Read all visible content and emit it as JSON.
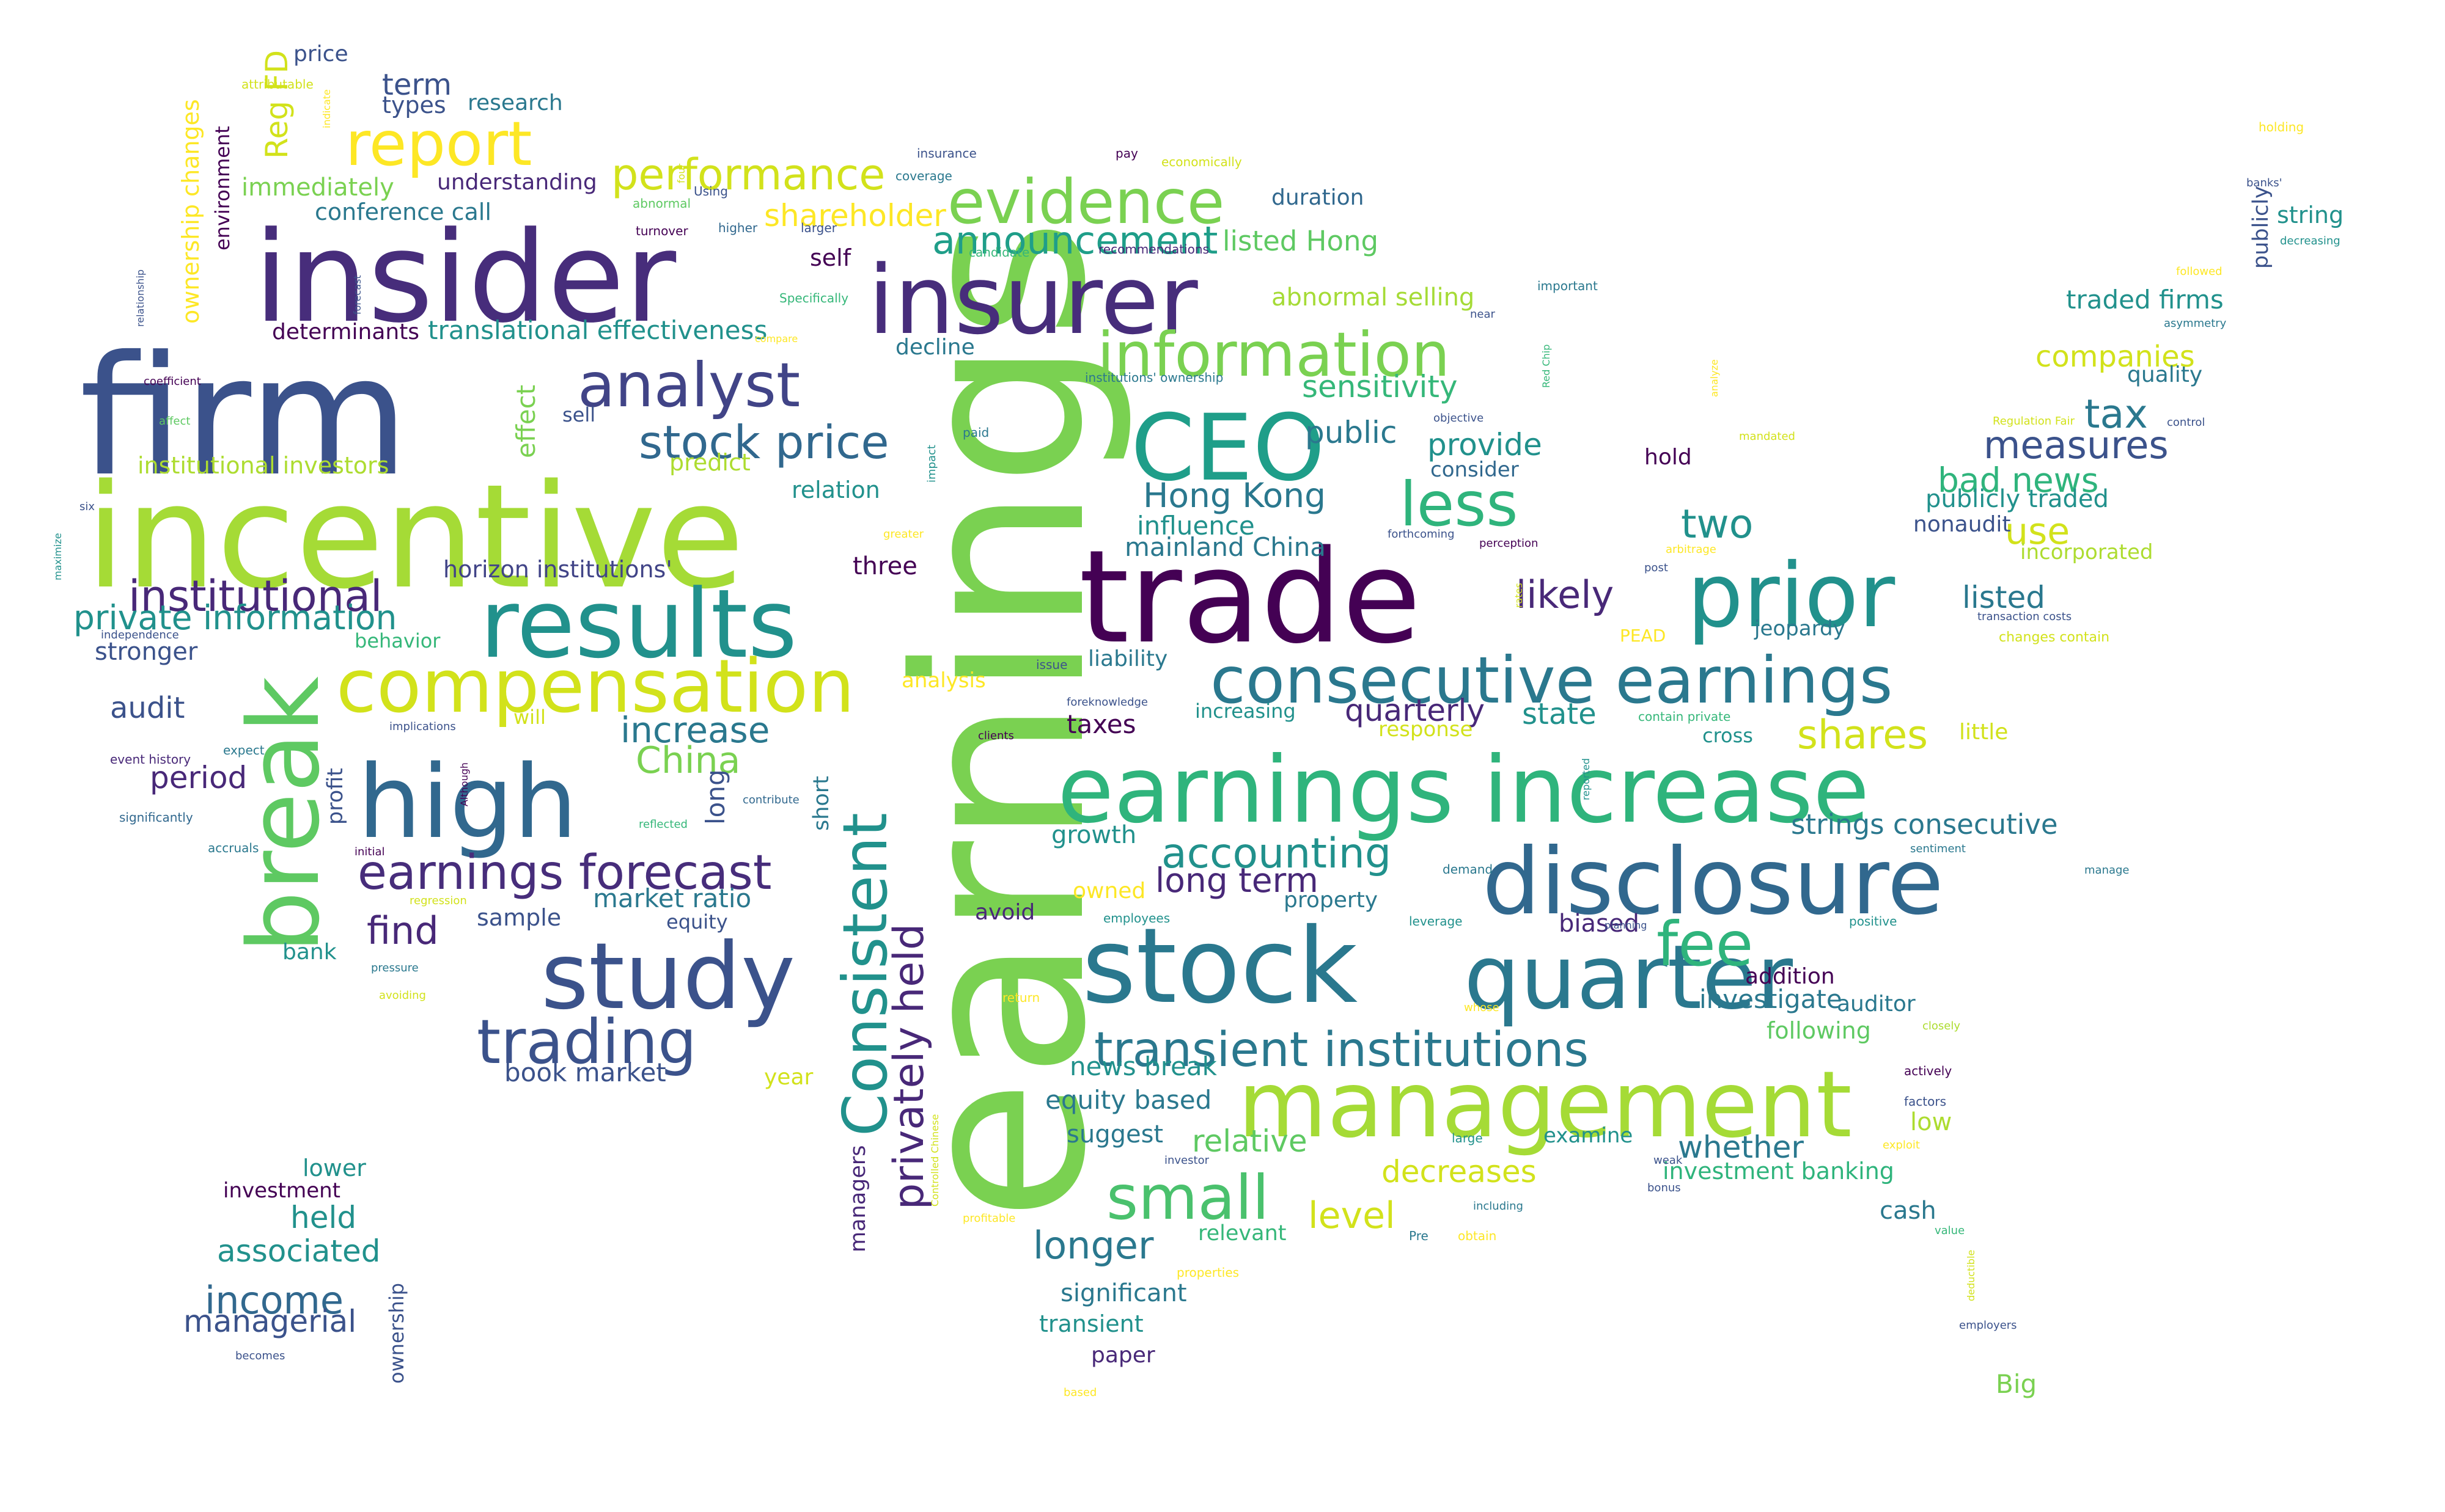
{
  "words": [
    {
      "text": "earnings",
      "color": "#7ad151"
    },
    {
      "text": "firm",
      "color": "#3b528b"
    },
    {
      "text": "insider",
      "color": "#472d7b"
    },
    {
      "text": "incentive",
      "color": "#a5db36"
    },
    {
      "text": "insurer",
      "color": "#472d7b"
    },
    {
      "text": "trade",
      "color": "#440154"
    },
    {
      "text": "earnings increase",
      "color": "#2fb47c"
    },
    {
      "text": "results",
      "color": "#21918c"
    },
    {
      "text": "stock",
      "color": "#2a788e"
    },
    {
      "text": "disclosure",
      "color": "#31688e"
    },
    {
      "text": "management",
      "color": "#a5db36"
    },
    {
      "text": "prior",
      "color": "#21918c"
    },
    {
      "text": "high",
      "color": "#31688e"
    },
    {
      "text": "compensation",
      "color": "#d2e21b"
    },
    {
      "text": "study",
      "color": "#3b528b"
    },
    {
      "text": "CEO",
      "color": "#1f9e89"
    },
    {
      "text": "quarter",
      "color": "#2a788e"
    },
    {
      "text": "consecutive earnings",
      "color": "#2a788e"
    },
    {
      "text": "break",
      "color": "#5ec962"
    },
    {
      "text": "Consistent",
      "color": "#21918c"
    },
    {
      "text": "evidence",
      "color": "#7ad151"
    },
    {
      "text": "information",
      "color": "#7ad151"
    },
    {
      "text": "analyst",
      "color": "#414487"
    },
    {
      "text": "report",
      "color": "#fde725"
    },
    {
      "text": "trading",
      "color": "#3b528b"
    },
    {
      "text": "small",
      "color": "#4ac16d"
    },
    {
      "text": "transient institutions",
      "color": "#2a788e"
    },
    {
      "text": "earnings forecast",
      "color": "#472d7b"
    },
    {
      "text": "performance",
      "color": "#d2e21b"
    },
    {
      "text": "less",
      "color": "#2fb47c"
    },
    {
      "text": "fee",
      "color": "#2fb47c"
    },
    {
      "text": "stock price",
      "color": "#31688e"
    },
    {
      "text": "privately held",
      "color": "#482878"
    },
    {
      "text": "accounting",
      "color": "#21918c"
    },
    {
      "text": "announcement",
      "color": "#1f9e89"
    },
    {
      "text": "institutional",
      "color": "#482878"
    },
    {
      "text": "shares",
      "color": "#d2e21b"
    },
    {
      "text": "measures",
      "color": "#3b528b"
    },
    {
      "text": "private information",
      "color": "#21918c"
    },
    {
      "text": "Hong Kong",
      "color": "#2a788e"
    },
    {
      "text": "two",
      "color": "#21918c"
    },
    {
      "text": "China",
      "color": "#7ad151"
    },
    {
      "text": "increase",
      "color": "#2a788e"
    },
    {
      "text": "longer",
      "color": "#2a788e"
    },
    {
      "text": "likely",
      "color": "#482878"
    },
    {
      "text": "tax",
      "color": "#2a788e"
    },
    {
      "text": "income",
      "color": "#31688e"
    },
    {
      "text": "use",
      "color": "#d2e21b"
    },
    {
      "text": "level",
      "color": "#d2e21b"
    },
    {
      "text": "shareholder",
      "color": "#fde725"
    },
    {
      "text": "listed Hong",
      "color": "#5ec962"
    },
    {
      "text": "long term",
      "color": "#482878"
    },
    {
      "text": "bad news",
      "color": "#2fb47c"
    },
    {
      "text": "find",
      "color": "#482878"
    },
    {
      "text": "translational effectiveness",
      "color": "#21918c"
    },
    {
      "text": "sensitivity",
      "color": "#35b779"
    },
    {
      "text": "provide",
      "color": "#21918c"
    },
    {
      "text": "public",
      "color": "#2a788e"
    },
    {
      "text": "companies",
      "color": "#d2e21b"
    },
    {
      "text": "listed",
      "color": "#2a788e"
    },
    {
      "text": "decreases",
      "color": "#d2e21b"
    },
    {
      "text": "relative",
      "color": "#5ec962"
    },
    {
      "text": "associated",
      "color": "#21918c"
    },
    {
      "text": "managerial",
      "color": "#3b528b"
    },
    {
      "text": "market ratio",
      "color": "#2a788e"
    },
    {
      "text": "strings consecutive",
      "color": "#2a788e"
    },
    {
      "text": "held",
      "color": "#21918c"
    },
    {
      "text": "whether",
      "color": "#2a788e"
    },
    {
      "text": "abnormal selling",
      "color": "#a5db36"
    },
    {
      "text": "mainland China",
      "color": "#2a788e"
    },
    {
      "text": "influence",
      "color": "#21918c"
    },
    {
      "text": "news break",
      "color": "#21918c"
    },
    {
      "text": "equity based",
      "color": "#2a788e"
    },
    {
      "text": "quarterly",
      "color": "#482878"
    },
    {
      "text": "state",
      "color": "#21918c"
    },
    {
      "text": "investigate",
      "color": "#2a788e"
    },
    {
      "text": "traded firms",
      "color": "#21918c"
    },
    {
      "text": "publicly traded",
      "color": "#21918c"
    },
    {
      "text": "term",
      "color": "#3b528b"
    },
    {
      "text": "immediately",
      "color": "#7ad151"
    },
    {
      "text": "conference call",
      "color": "#2a788e"
    },
    {
      "text": "understanding",
      "color": "#482878"
    },
    {
      "text": "institutional investors",
      "color": "#addc30"
    },
    {
      "text": "horizon institutions'",
      "color": "#414487"
    },
    {
      "text": "audit",
      "color": "#3b528b"
    },
    {
      "text": "period",
      "color": "#482878"
    },
    {
      "text": "stronger",
      "color": "#3b528b"
    },
    {
      "text": "Reg FD",
      "color": "#d2e21b"
    },
    {
      "text": "ownership changes",
      "color": "#fde725"
    },
    {
      "text": "environment",
      "color": "#440154"
    },
    {
      "text": "effect",
      "color": "#7ad151"
    },
    {
      "text": "profit",
      "color": "#3b528b"
    },
    {
      "text": "long",
      "color": "#3b528b"
    },
    {
      "text": "short",
      "color": "#2a788e"
    },
    {
      "text": "managers",
      "color": "#482878"
    },
    {
      "text": "ownership",
      "color": "#3b528b"
    },
    {
      "text": "predict",
      "color": "#addc30"
    },
    {
      "text": "relation",
      "color": "#21918c"
    },
    {
      "text": "three",
      "color": "#440154"
    },
    {
      "text": "self",
      "color": "#440154"
    },
    {
      "text": "decline",
      "color": "#2a788e"
    },
    {
      "text": "duration",
      "color": "#31688e"
    },
    {
      "text": "price",
      "color": "#3b528b"
    },
    {
      "text": "types",
      "color": "#3b528b"
    },
    {
      "text": "research",
      "color": "#2a788e"
    },
    {
      "text": "determinants",
      "color": "#440154"
    },
    {
      "text": "sell",
      "color": "#3b528b"
    },
    {
      "text": "hold",
      "color": "#440154"
    },
    {
      "text": "consider",
      "color": "#31688e"
    },
    {
      "text": "growth",
      "color": "#21918c"
    },
    {
      "text": "owned",
      "color": "#fde725"
    },
    {
      "text": "avoid",
      "color": "#482878"
    },
    {
      "text": "property",
      "color": "#2a788e"
    },
    {
      "text": "biased",
      "color": "#482878"
    },
    {
      "text": "addition",
      "color": "#440154"
    },
    {
      "text": "auditor",
      "color": "#2a788e"
    },
    {
      "text": "following",
      "color": "#5ec962"
    },
    {
      "text": "suggest",
      "color": "#2a788e"
    },
    {
      "text": "examine",
      "color": "#21918c"
    },
    {
      "text": "investment banking",
      "color": "#2fb47c"
    },
    {
      "text": "low",
      "color": "#addc30"
    },
    {
      "text": "cash",
      "color": "#2a788e"
    },
    {
      "text": "significant",
      "color": "#2a788e"
    },
    {
      "text": "transient",
      "color": "#21918c"
    },
    {
      "text": "paper",
      "color": "#482878"
    },
    {
      "text": "Big",
      "color": "#7ad151"
    },
    {
      "text": "year",
      "color": "#d2e21b"
    },
    {
      "text": "book market",
      "color": "#3b528b"
    },
    {
      "text": "sample",
      "color": "#3b528b"
    },
    {
      "text": "equity",
      "color": "#3b528b"
    },
    {
      "text": "bank",
      "color": "#21918c"
    },
    {
      "text": "lower",
      "color": "#21918c"
    },
    {
      "text": "investment",
      "color": "#440154"
    },
    {
      "text": "relevant",
      "color": "#35b779"
    },
    {
      "text": "will",
      "color": "#d2e21b"
    },
    {
      "text": "analysis",
      "color": "#fde725"
    },
    {
      "text": "liability",
      "color": "#2a788e"
    },
    {
      "text": "taxes",
      "color": "#440154"
    },
    {
      "text": "increasing",
      "color": "#21918c"
    },
    {
      "text": "response",
      "color": "#d2e21b"
    },
    {
      "text": "cross",
      "color": "#21918c"
    },
    {
      "text": "little",
      "color": "#d2e21b"
    },
    {
      "text": "jeopardy",
      "color": "#2a788e"
    },
    {
      "text": "incorporated",
      "color": "#addc30"
    },
    {
      "text": "nonaudit",
      "color": "#3b528b"
    },
    {
      "text": "quality",
      "color": "#2a788e"
    },
    {
      "text": "publicly",
      "color": "#3b528b"
    },
    {
      "text": "string",
      "color": "#21918c"
    },
    {
      "text": "behavior",
      "color": "#35b779"
    },
    {
      "text": "becomes",
      "color": "#3b528b"
    },
    {
      "text": "significantly",
      "color": "#31688e"
    },
    {
      "text": "accruals",
      "color": "#2a788e"
    },
    {
      "text": "initial",
      "color": "#440154"
    },
    {
      "text": "expect",
      "color": "#2a788e"
    },
    {
      "text": "event history",
      "color": "#482878"
    },
    {
      "text": "implications",
      "color": "#3b528b"
    },
    {
      "text": "Although",
      "color": "#440154"
    },
    {
      "text": "contribute",
      "color": "#31688e"
    },
    {
      "text": "reflected",
      "color": "#35b779"
    },
    {
      "text": "regression",
      "color": "#d2e21b"
    },
    {
      "text": "pressure",
      "color": "#2a788e"
    },
    {
      "text": "avoiding",
      "color": "#d2e21b"
    },
    {
      "text": "independence",
      "color": "#3b528b"
    },
    {
      "text": "six",
      "color": "#3b528b"
    },
    {
      "text": "maximize",
      "color": "#21918c"
    },
    {
      "text": "affect",
      "color": "#5ec962"
    },
    {
      "text": "coefficient",
      "color": "#440154"
    },
    {
      "text": "relationship",
      "color": "#3b528b"
    },
    {
      "text": "attributable",
      "color": "#d2e21b"
    },
    {
      "text": "indicate",
      "color": "#fde725"
    },
    {
      "text": "forecast",
      "color": "#3b528b"
    },
    {
      "text": "four",
      "color": "#d2e21b"
    },
    {
      "text": "Using",
      "color": "#3b528b"
    },
    {
      "text": "abnormal",
      "color": "#5ec962"
    },
    {
      "text": "turnover",
      "color": "#440154"
    },
    {
      "text": "higher",
      "color": "#31688e"
    },
    {
      "text": "larger",
      "color": "#3b528b"
    },
    {
      "text": "insurance",
      "color": "#3b528b"
    },
    {
      "text": "coverage",
      "color": "#2a788e"
    },
    {
      "text": "candidate",
      "color": "#35b779"
    },
    {
      "text": "recommendations",
      "color": "#482878"
    },
    {
      "text": "pay",
      "color": "#440154"
    },
    {
      "text": "economically",
      "color": "#d2e21b"
    },
    {
      "text": "Specifically",
      "color": "#35b779"
    },
    {
      "text": "compare",
      "color": "#fde725"
    },
    {
      "text": "institutions' ownership",
      "color": "#2a788e"
    },
    {
      "text": "paid",
      "color": "#2a788e"
    },
    {
      "text": "impact",
      "color": "#21918c"
    },
    {
      "text": "greater",
      "color": "#fde725"
    },
    {
      "text": "issue",
      "color": "#3b528b"
    },
    {
      "text": "foreknowledge",
      "color": "#3b528b"
    },
    {
      "text": "clients",
      "color": "#440154"
    },
    {
      "text": "employees",
      "color": "#21918c"
    },
    {
      "text": "return",
      "color": "#fde725"
    },
    {
      "text": "Controlled Chinese",
      "color": "#d2e21b"
    },
    {
      "text": "profitable",
      "color": "#fde725"
    },
    {
      "text": "properties",
      "color": "#fde725"
    },
    {
      "text": "based",
      "color": "#fde725"
    },
    {
      "text": "investor",
      "color": "#3b528b"
    },
    {
      "text": "Pre",
      "color": "#2a788e"
    },
    {
      "text": "obtain",
      "color": "#fde725"
    },
    {
      "text": "including",
      "color": "#2a788e"
    },
    {
      "text": "weak",
      "color": "#3b528b"
    },
    {
      "text": "large",
      "color": "#21918c"
    },
    {
      "text": "whose",
      "color": "#fde725"
    },
    {
      "text": "leverage",
      "color": "#21918c"
    },
    {
      "text": "demand",
      "color": "#2a788e"
    },
    {
      "text": "objective",
      "color": "#3b528b"
    },
    {
      "text": "forthcoming",
      "color": "#3b528b"
    },
    {
      "text": "perception",
      "color": "#440154"
    },
    {
      "text": "rates",
      "color": "#d2e21b"
    },
    {
      "text": "important",
      "color": "#2a788e"
    },
    {
      "text": "near",
      "color": "#3b528b"
    },
    {
      "text": "Red Chip",
      "color": "#35b779"
    },
    {
      "text": "post",
      "color": "#3b528b"
    },
    {
      "text": "PEAD",
      "color": "#fde725"
    },
    {
      "text": "contain private",
      "color": "#35b779"
    },
    {
      "text": "reported",
      "color": "#21918c"
    },
    {
      "text": "planning",
      "color": "#3b528b"
    },
    {
      "text": "bonus",
      "color": "#3b528b"
    },
    {
      "text": "exploit",
      "color": "#fde725"
    },
    {
      "text": "analyze",
      "color": "#fde725"
    },
    {
      "text": "mandated",
      "color": "#d2e21b"
    },
    {
      "text": "arbitrage",
      "color": "#fde725"
    },
    {
      "text": "sentiment",
      "color": "#2a788e"
    },
    {
      "text": "manage",
      "color": "#2a788e"
    },
    {
      "text": "positive",
      "color": "#21918c"
    },
    {
      "text": "closely",
      "color": "#addc30"
    },
    {
      "text": "actively",
      "color": "#440154"
    },
    {
      "text": "factors",
      "color": "#3b528b"
    },
    {
      "text": "value",
      "color": "#35b779"
    },
    {
      "text": "deductible",
      "color": "#d2e21b"
    },
    {
      "text": "employers",
      "color": "#3b528b"
    },
    {
      "text": "holding",
      "color": "#fde725"
    },
    {
      "text": "banks'",
      "color": "#3b528b"
    },
    {
      "text": "asymmetry",
      "color": "#2a788e"
    },
    {
      "text": "decreasing",
      "color": "#21918c"
    },
    {
      "text": "followed",
      "color": "#fde725"
    },
    {
      "text": "Regulation Fair",
      "color": "#d2e21b"
    },
    {
      "text": "control",
      "color": "#3b528b"
    },
    {
      "text": "transaction costs",
      "color": "#3b528b"
    },
    {
      "text": "changes contain",
      "color": "#d2e21b"
    }
  ]
}
